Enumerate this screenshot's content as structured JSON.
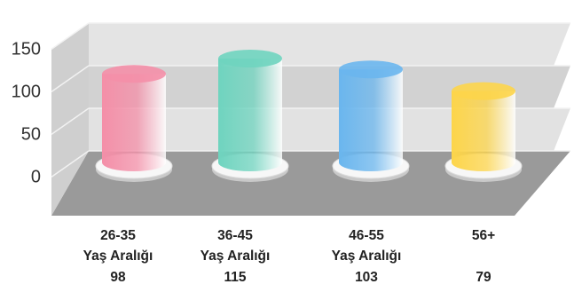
{
  "chart_data": {
    "type": "bar",
    "style": "3d-cylinder",
    "title": "",
    "xlabel": "",
    "ylabel": "",
    "ylim": [
      0,
      150
    ],
    "yticks": [
      "0",
      "50",
      "100",
      "150"
    ],
    "grid": true,
    "legend": "none",
    "categories": [
      {
        "line1": "26-35",
        "line2": "Yaş Aralığı",
        "value_label": "98"
      },
      {
        "line1": "36-45",
        "line2": "Yaş Aralığı",
        "value_label": "115"
      },
      {
        "line1": "46-55",
        "line2": "Yaş Aralığı",
        "value_label": "103"
      },
      {
        "line1": "56+",
        "line2": "",
        "value_label": "79"
      }
    ],
    "values": [
      98,
      115,
      103,
      79
    ],
    "colors": [
      "#f48fa8",
      "#6fd4bf",
      "#6ab6ee",
      "#fdd54a"
    ]
  }
}
